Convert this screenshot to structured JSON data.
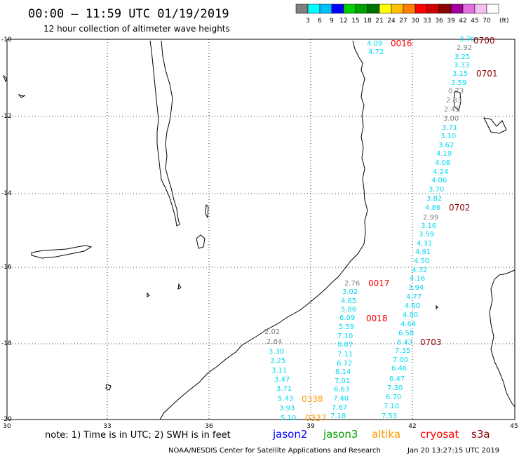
{
  "header": {
    "title": "00:00 – 11:59 UTC 01/19/2019",
    "subtitle": "12 hour collection of altimeter wave heights"
  },
  "legend": {
    "unit": "(ft)",
    "labels": [
      "3",
      "6",
      "9",
      "12",
      "15",
      "18",
      "21",
      "24",
      "27",
      "30",
      "33",
      "36",
      "39",
      "42",
      "45",
      "70"
    ],
    "colors": [
      "#7f7f7f",
      "#00ffff",
      "#00bfff",
      "#0000ff",
      "#00cf00",
      "#00a000",
      "#007000",
      "#ffff00",
      "#ffc000",
      "#ff8000",
      "#ff0000",
      "#cf0000",
      "#8b0000",
      "#a000a0",
      "#e070e0",
      "#f4c0f4",
      "#ffffff"
    ]
  },
  "axes": {
    "lon_labels": [
      "30",
      "33",
      "36",
      "39",
      "42",
      "45"
    ],
    "lat_labels": [
      "-10",
      "-12",
      "-14",
      "-16",
      "-18",
      "-20"
    ]
  },
  "tracks": [
    {
      "name": "track-upper-east",
      "values": [
        {
          "v": "3.70",
          "c": "#00d8f0"
        },
        {
          "v": "2.92",
          "c": "#808080"
        },
        {
          "v": "3.25",
          "c": "#00d8f0"
        },
        {
          "v": "3.33",
          "c": "#00d8f0"
        },
        {
          "v": "3.15",
          "c": "#00d8f0"
        },
        {
          "v": "3.59",
          "c": "#00d8f0"
        },
        {
          "v": "0.73",
          "c": "#808080"
        },
        {
          "v": "2.83",
          "c": "#808080"
        },
        {
          "v": "2.45",
          "c": "#808080"
        },
        {
          "v": "3.00",
          "c": "#808080"
        },
        {
          "v": "3.71",
          "c": "#00d8f0"
        },
        {
          "v": "3.10",
          "c": "#00d8f0"
        },
        {
          "v": "3.62",
          "c": "#00d8f0"
        },
        {
          "v": "4.19",
          "c": "#00d8f0"
        },
        {
          "v": "4.08",
          "c": "#00d8f0"
        },
        {
          "v": "4.24",
          "c": "#00d8f0"
        },
        {
          "v": "4.06",
          "c": "#00d8f0"
        },
        {
          "v": "3.70",
          "c": "#00d8f0"
        },
        {
          "v": "3.82",
          "c": "#00d8f0"
        },
        {
          "v": "4.86",
          "c": "#00d8f0"
        }
      ]
    },
    {
      "name": "track-lower-east",
      "values": [
        {
          "v": "2.99",
          "c": "#808080"
        },
        {
          "v": "3.16",
          "c": "#00d8f0"
        },
        {
          "v": "3.59",
          "c": "#00d8f0"
        },
        {
          "v": "4.31",
          "c": "#00d8f0"
        },
        {
          "v": "4.91",
          "c": "#00d8f0"
        },
        {
          "v": "4.50",
          "c": "#00d8f0"
        },
        {
          "v": "4.32",
          "c": "#00d8f0"
        },
        {
          "v": "4.16",
          "c": "#00d8f0"
        },
        {
          "v": "3.94",
          "c": "#00d8f0"
        },
        {
          "v": "4.77",
          "c": "#00d8f0"
        },
        {
          "v": "4.60",
          "c": "#00d8f0"
        },
        {
          "v": "4.90",
          "c": "#00d8f0"
        },
        {
          "v": "4.64",
          "c": "#00d8f0"
        },
        {
          "v": "6.58",
          "c": "#00d8f0"
        },
        {
          "v": "6.43",
          "c": "#00d8f0"
        },
        {
          "v": "7.35",
          "c": "#00d8f0"
        },
        {
          "v": "7.00",
          "c": "#00d8f0"
        },
        {
          "v": "6.46",
          "c": "#00d8f0"
        },
        {
          "v": "6.47",
          "c": "#00d8f0"
        },
        {
          "v": "7.30",
          "c": "#00d8f0"
        },
        {
          "v": "6.70",
          "c": "#00d8f0"
        },
        {
          "v": "7.10",
          "c": "#00d8f0"
        },
        {
          "v": "7.53",
          "c": "#00d8f0"
        }
      ]
    },
    {
      "name": "track-center",
      "values": [
        {
          "v": "2.76",
          "c": "#808080"
        },
        {
          "v": "3.02",
          "c": "#00d8f0"
        },
        {
          "v": "4.65",
          "c": "#00d8f0"
        },
        {
          "v": "5.86",
          "c": "#00d8f0"
        },
        {
          "v": "6.09",
          "c": "#00d8f0"
        },
        {
          "v": "5.59",
          "c": "#00d8f0"
        },
        {
          "v": "7.10",
          "c": "#00d8f0"
        },
        {
          "v": "6.87",
          "c": "#00d8f0"
        },
        {
          "v": "7.11",
          "c": "#00d8f0"
        },
        {
          "v": "6.72",
          "c": "#00d8f0"
        },
        {
          "v": "6.14",
          "c": "#00d8f0"
        },
        {
          "v": "7.01",
          "c": "#00d8f0"
        },
        {
          "v": "6.63",
          "c": "#00d8f0"
        },
        {
          "v": "7.40",
          "c": "#00d8f0"
        },
        {
          "v": "7.67",
          "c": "#00d8f0"
        },
        {
          "v": "7.18",
          "c": "#00d8f0"
        }
      ]
    },
    {
      "name": "track-west",
      "values": [
        {
          "v": "2.02",
          "c": "#808080"
        },
        {
          "v": "2.84",
          "c": "#808080"
        },
        {
          "v": "3.30",
          "c": "#00d8f0"
        },
        {
          "v": "3.25",
          "c": "#00d8f0"
        },
        {
          "v": "3.11",
          "c": "#00d8f0"
        },
        {
          "v": "3.47",
          "c": "#00d8f0"
        },
        {
          "v": "3.71",
          "c": "#00d8f0"
        },
        {
          "v": "5.43",
          "c": "#00d8f0"
        },
        {
          "v": "3.93",
          "c": "#00d8f0"
        },
        {
          "v": "5.10",
          "c": "#00d8f0"
        }
      ]
    },
    {
      "name": "track-north",
      "values": [
        {
          "v": "4.09",
          "c": "#00d8f0"
        },
        {
          "v": "4.72",
          "c": "#00d8f0"
        }
      ]
    }
  ],
  "time_labels": [
    {
      "t": "0016",
      "c": "#ff0000"
    },
    {
      "t": "0700",
      "c": "#8b0000"
    },
    {
      "t": "0701",
      "c": "#8b0000"
    },
    {
      "t": "0702",
      "c": "#8b0000"
    },
    {
      "t": "0017",
      "c": "#ff0000"
    },
    {
      "t": "0018",
      "c": "#ff0000"
    },
    {
      "t": "0703",
      "c": "#8b0000"
    },
    {
      "t": "0338",
      "c": "#ff9900"
    },
    {
      "t": "0337",
      "c": "#ff9900"
    }
  ],
  "footer": {
    "note": "note:  1) Time is in UTC;  2) SWH is in feet",
    "satellites": [
      {
        "name": "jason2",
        "color": "#0000ff"
      },
      {
        "name": "jason3",
        "color": "#00a000"
      },
      {
        "name": "altika",
        "color": "#ff9900"
      },
      {
        "name": "cryosat",
        "color": "#ff0000"
      },
      {
        "name": "s3a",
        "color": "#8b0000"
      }
    ],
    "credit": "NOAA/NESDIS Center for Satellite Applications and Research",
    "timestamp": "Jan 20 13:27:15 UTC 2019"
  }
}
